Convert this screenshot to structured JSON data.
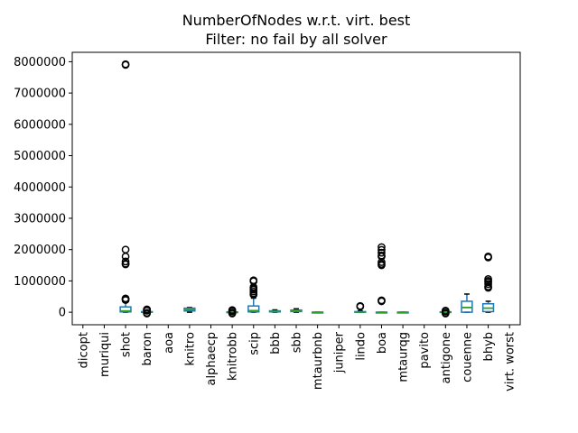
{
  "chart_data": {
    "type": "box",
    "title": "NumberOfNodes w.r.t. virt. best",
    "subtitle": "Filter: no fail by all solver",
    "xlabel": "",
    "ylabel": "",
    "ylim": [
      -400000,
      8300000
    ],
    "yticks": [
      0,
      1000000,
      2000000,
      3000000,
      4000000,
      5000000,
      6000000,
      7000000,
      8000000
    ],
    "ytick_labels": [
      "0",
      "1000000",
      "2000000",
      "3000000",
      "4000000",
      "5000000",
      "6000000",
      "7000000",
      "8000000"
    ],
    "grid": false,
    "categories": [
      "dicopt",
      "muriqui",
      "shot",
      "baron",
      "aoa",
      "knitro",
      "alphaecp",
      "knitrobb",
      "scip",
      "bbb",
      "sbb",
      "mtaurbnb",
      "juniper",
      "lindo",
      "boa",
      "mtaurqg",
      "pavito",
      "antigone",
      "couenne",
      "bhyb",
      "virt. worst"
    ],
    "boxes": [
      null,
      null,
      {
        "whislo": 0,
        "q1": 10000,
        "med": 40000,
        "q3": 170000,
        "whishi": 320000,
        "fliers": [
          7920000,
          7900000,
          2000000,
          1780000,
          1620000,
          1550000,
          1530000,
          440000,
          420000,
          390000
        ]
      },
      {
        "whislo": 0,
        "q1": 0,
        "med": 5000,
        "q3": 20000,
        "whishi": 40000,
        "fliers": [
          90000,
          70000,
          60000,
          50000,
          -20000,
          -40000
        ]
      },
      null,
      {
        "whislo": 0,
        "q1": 40000,
        "med": 80000,
        "q3": 130000,
        "whishi": 150000,
        "fliers": []
      },
      null,
      {
        "whislo": 0,
        "q1": 0,
        "med": 3000,
        "q3": 10000,
        "whishi": 20000,
        "fliers": [
          70000,
          50000,
          30000,
          -20000,
          -40000
        ]
      },
      {
        "whislo": 0,
        "q1": 10000,
        "med": 50000,
        "q3": 200000,
        "whishi": 450000,
        "fliers": [
          1020000,
          990000,
          800000,
          760000,
          720000,
          660000,
          600000,
          560000
        ]
      },
      {
        "whislo": 0,
        "q1": 10000,
        "med": 25000,
        "q3": 45000,
        "whishi": 75000,
        "fliers": []
      },
      {
        "whislo": 0,
        "q1": 20000,
        "med": 45000,
        "q3": 70000,
        "whishi": 110000,
        "fliers": []
      },
      {
        "whislo": 0,
        "q1": 0,
        "med": 0,
        "q3": 0,
        "whishi": 0,
        "fliers": []
      },
      null,
      {
        "whislo": 0,
        "q1": 0,
        "med": 5000,
        "q3": 20000,
        "whishi": 40000,
        "fliers": [
          200000,
          180000
        ]
      },
      {
        "whislo": 0,
        "q1": 0,
        "med": 0,
        "q3": 0,
        "whishi": 0,
        "fliers": [
          2080000,
          1990000,
          1900000,
          1810000,
          1780000,
          1600000,
          1540000,
          1500000,
          380000,
          350000
        ]
      },
      {
        "whislo": 0,
        "q1": 0,
        "med": 0,
        "q3": 0,
        "whishi": 0,
        "fliers": []
      },
      null,
      {
        "whislo": 0,
        "q1": 0,
        "med": 3000,
        "q3": 15000,
        "whishi": 30000,
        "fliers": [
          50000,
          30000,
          -20000,
          -40000
        ]
      },
      {
        "whislo": 0,
        "q1": 0,
        "med": 150000,
        "q3": 350000,
        "whishi": 580000,
        "fliers": []
      },
      {
        "whislo": 0,
        "q1": 20000,
        "med": 130000,
        "q3": 270000,
        "whishi": 350000,
        "fliers": [
          1780000,
          1750000,
          1060000,
          1000000,
          960000,
          900000,
          820000,
          780000
        ]
      },
      null
    ],
    "colors": {
      "box": "#1f77b4",
      "median": "#2ca02c",
      "whisker": "#1f77b4",
      "flier": "#000000"
    }
  }
}
